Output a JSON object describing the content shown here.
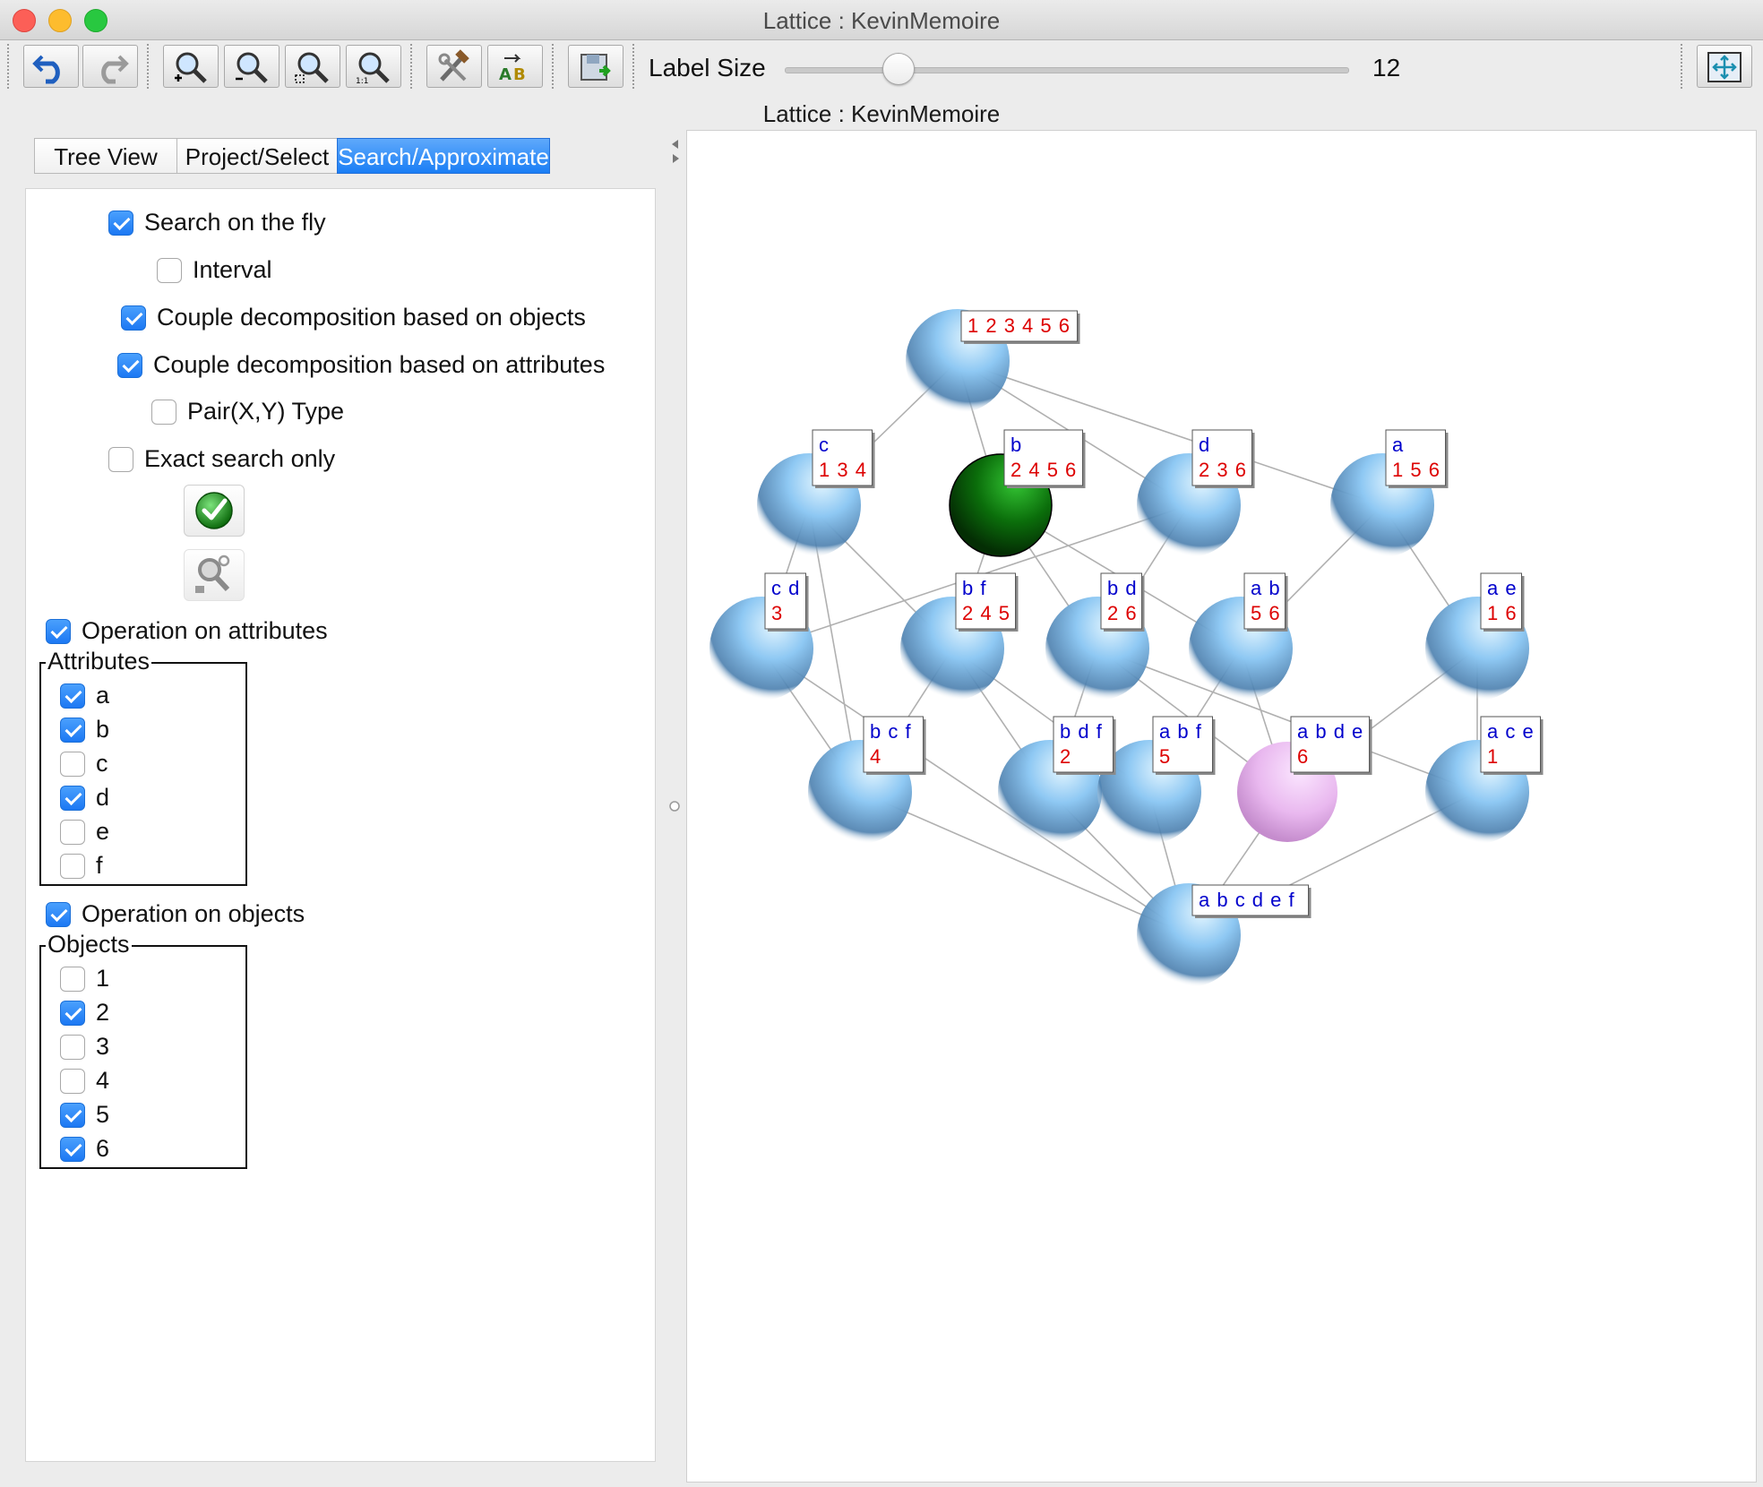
{
  "window": {
    "title": "Lattice : KevinMemoire"
  },
  "toolbar": {
    "buttons": [
      {
        "name": "undo-button",
        "icon": "undo-icon"
      },
      {
        "name": "redo-button",
        "icon": "redo-icon"
      },
      {
        "name": "zoom-in-button",
        "icon": "zoom-in-icon"
      },
      {
        "name": "zoom-out-button",
        "icon": "zoom-out-icon"
      },
      {
        "name": "zoom-area-button",
        "icon": "zoom-area-icon"
      },
      {
        "name": "zoom-actual-button",
        "icon": "zoom-actual-icon"
      },
      {
        "name": "settings-button",
        "icon": "tools-icon"
      },
      {
        "name": "label-format-button",
        "icon": "label-ab-icon"
      },
      {
        "name": "export-button",
        "icon": "export-icon"
      },
      {
        "name": "fit-view-button",
        "icon": "fit-view-icon"
      }
    ],
    "label_size_label": "Label Size",
    "label_size_value": "12",
    "label_size_slider_fraction": 0.2
  },
  "subtitle": "Lattice : KevinMemoire",
  "tabs": [
    {
      "label": "Tree View",
      "active": false
    },
    {
      "label": "Project/Select",
      "active": false
    },
    {
      "label": "Search/Approximate",
      "active": true
    }
  ],
  "search_panel": {
    "options": [
      {
        "label": "Search on the fly",
        "checked": true
      },
      {
        "label": "Interval",
        "checked": false
      },
      {
        "label": "Couple decomposition based on objects",
        "checked": true
      },
      {
        "label": "Couple decomposition based on attributes",
        "checked": true
      },
      {
        "label": "Pair(X,Y) Type",
        "checked": false
      },
      {
        "label": "Exact search only",
        "checked": false
      }
    ],
    "apply_icon": "green-check-icon",
    "search_icon": "search-key-icon",
    "operation_on_attributes": {
      "label": "Operation on attributes",
      "checked": true
    },
    "attributes_title": "Attributes",
    "attributes": [
      {
        "label": "a",
        "checked": true
      },
      {
        "label": "b",
        "checked": true
      },
      {
        "label": "c",
        "checked": false
      },
      {
        "label": "d",
        "checked": true
      },
      {
        "label": "e",
        "checked": false
      },
      {
        "label": "f",
        "checked": false
      }
    ],
    "operation_on_objects": {
      "label": "Operation on objects",
      "checked": true
    },
    "objects_title": "Objects",
    "objects": [
      {
        "label": "1",
        "checked": false
      },
      {
        "label": "2",
        "checked": true
      },
      {
        "label": "3",
        "checked": false
      },
      {
        "label": "4",
        "checked": false
      },
      {
        "label": "5",
        "checked": true
      },
      {
        "label": "6",
        "checked": true
      }
    ]
  },
  "lattice": {
    "colors": {
      "node": "#7fbaf0",
      "selected": "#0b6e0b",
      "highlighted": "#e8b6ec",
      "intent": "#0000cc",
      "extent": "#dd0000",
      "edge": "#b0b0b0"
    },
    "nodes": [
      {
        "id": "top",
        "intent": "",
        "extent": "1 2 3 4 5 6",
        "state": "normal"
      },
      {
        "id": "c",
        "intent": "c",
        "extent": "1 3 4",
        "state": "normal"
      },
      {
        "id": "b",
        "intent": "b",
        "extent": "2 4 5 6",
        "state": "selected"
      },
      {
        "id": "d",
        "intent": "d",
        "extent": "2 3 6",
        "state": "normal"
      },
      {
        "id": "a",
        "intent": "a",
        "extent": "1 5 6",
        "state": "normal"
      },
      {
        "id": "cd",
        "intent": "c d",
        "extent": "3",
        "state": "normal"
      },
      {
        "id": "bf",
        "intent": "b f",
        "extent": "2 4 5",
        "state": "normal"
      },
      {
        "id": "bd",
        "intent": "b d",
        "extent": "2 6",
        "state": "normal"
      },
      {
        "id": "ab",
        "intent": "a b",
        "extent": "5 6",
        "state": "normal"
      },
      {
        "id": "ae",
        "intent": "a e",
        "extent": "1 6",
        "state": "normal"
      },
      {
        "id": "bcf",
        "intent": "b c f",
        "extent": "4",
        "state": "normal"
      },
      {
        "id": "bdf",
        "intent": "b d f",
        "extent": "2",
        "state": "normal"
      },
      {
        "id": "abf",
        "intent": "a b f",
        "extent": "5",
        "state": "normal"
      },
      {
        "id": "abde",
        "intent": "a b d e",
        "extent": "6",
        "state": "highlighted"
      },
      {
        "id": "ace",
        "intent": "a c e",
        "extent": "1",
        "state": "normal"
      },
      {
        "id": "bottom",
        "intent": "a b c d e f",
        "extent": "",
        "state": "normal"
      }
    ],
    "edges": [
      [
        "top",
        "c"
      ],
      [
        "top",
        "b"
      ],
      [
        "top",
        "d"
      ],
      [
        "top",
        "a"
      ],
      [
        "c",
        "cd"
      ],
      [
        "c",
        "bf"
      ],
      [
        "c",
        "bcf"
      ],
      [
        "b",
        "bf"
      ],
      [
        "b",
        "bd"
      ],
      [
        "b",
        "ab"
      ],
      [
        "d",
        "cd"
      ],
      [
        "d",
        "bd"
      ],
      [
        "a",
        "ab"
      ],
      [
        "a",
        "ae"
      ],
      [
        "cd",
        "bcf"
      ],
      [
        "cd",
        "bottom"
      ],
      [
        "bf",
        "bcf"
      ],
      [
        "bf",
        "bdf"
      ],
      [
        "bf",
        "abf"
      ],
      [
        "bd",
        "bdf"
      ],
      [
        "bd",
        "abde"
      ],
      [
        "ab",
        "abf"
      ],
      [
        "ab",
        "abde"
      ],
      [
        "ae",
        "abde"
      ],
      [
        "ae",
        "ace"
      ],
      [
        "bcf",
        "bottom"
      ],
      [
        "bdf",
        "bottom"
      ],
      [
        "abf",
        "bottom"
      ],
      [
        "abde",
        "bottom"
      ],
      [
        "ace",
        "bottom"
      ],
      [
        "bd",
        "ace"
      ]
    ]
  }
}
